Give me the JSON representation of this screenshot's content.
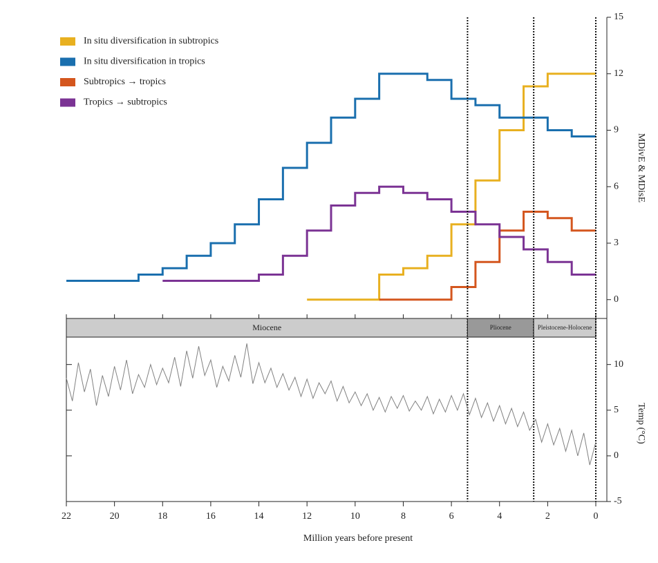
{
  "chart_data": [
    {
      "type": "step",
      "ylabel": "MDivE & MDisE",
      "legend": "upper left",
      "x": [
        22,
        21,
        20,
        19,
        18,
        17,
        16,
        15,
        14,
        13,
        12,
        11,
        10,
        9,
        8,
        7,
        6,
        5,
        4,
        3,
        2,
        1,
        0
      ],
      "xlim": [
        22,
        0
      ],
      "ylim": [
        -1,
        15
      ],
      "yticks": [
        0,
        3,
        6,
        9,
        12,
        15
      ],
      "series": [
        {
          "name": "In situ diversification in subtropics",
          "color": "#e8b020",
          "values": [
            null,
            null,
            null,
            null,
            null,
            null,
            null,
            null,
            null,
            null,
            0,
            0,
            0,
            1.33,
            1.67,
            2.33,
            4,
            6.33,
            9,
            11.33,
            12,
            12,
            12
          ]
        },
        {
          "name": "In situ diversification in tropics",
          "color": "#1a6fae",
          "values": [
            1,
            1,
            1,
            1.33,
            1.67,
            2.33,
            3,
            4,
            5.33,
            7,
            8.33,
            9.67,
            10.67,
            12,
            12,
            11.67,
            10.67,
            10.33,
            9.67,
            9.67,
            9,
            8.67,
            8.67
          ]
        },
        {
          "name": "Subtropics → tropics",
          "color": "#d4561e",
          "values": [
            null,
            null,
            null,
            null,
            null,
            null,
            null,
            null,
            null,
            null,
            null,
            null,
            null,
            0,
            0,
            0,
            0.67,
            2,
            3.67,
            4.67,
            4.33,
            3.67,
            3.67
          ]
        },
        {
          "name": "Tropics → subtropics",
          "color": "#7b3394",
          "values": [
            null,
            null,
            null,
            null,
            1,
            1,
            1,
            1,
            1.33,
            2.33,
            3.67,
            5,
            5.67,
            6,
            5.67,
            5.33,
            4.67,
            4,
            3.33,
            2.67,
            2,
            1.33,
            1.33
          ]
        }
      ]
    },
    {
      "type": "line",
      "xlabel": "Million years before present",
      "ylabel": "Temp (°C)",
      "epochs": [
        {
          "name": "Miocene",
          "from": 22,
          "to": 5.33,
          "color": "#cccccc"
        },
        {
          "name": "Pliocene",
          "from": 5.33,
          "to": 2.58,
          "color": "#999999"
        },
        {
          "name": "Pleistocene-Holocene",
          "from": 2.58,
          "to": 0,
          "color": "#cccccc"
        }
      ],
      "x": [
        22,
        21.75,
        21.5,
        21.25,
        21,
        20.75,
        20.5,
        20.25,
        20,
        19.75,
        19.5,
        19.25,
        19,
        18.75,
        18.5,
        18.25,
        18,
        17.75,
        17.5,
        17.25,
        17,
        16.75,
        16.5,
        16.25,
        16,
        15.75,
        15.5,
        15.25,
        15,
        14.75,
        14.5,
        14.25,
        14,
        13.75,
        13.5,
        13.25,
        13,
        12.75,
        12.5,
        12.25,
        12,
        11.75,
        11.5,
        11.25,
        11,
        10.75,
        10.5,
        10.25,
        10,
        9.75,
        9.5,
        9.25,
        9,
        8.75,
        8.5,
        8.25,
        8,
        7.75,
        7.5,
        7.25,
        7,
        6.75,
        6.5,
        6.25,
        6,
        5.75,
        5.5,
        5.25,
        5,
        4.75,
        4.5,
        4.25,
        4,
        3.75,
        3.5,
        3.25,
        3,
        2.75,
        2.5,
        2.25,
        2,
        1.75,
        1.5,
        1.25,
        1,
        0.75,
        0.5,
        0.25,
        0
      ],
      "series": [
        {
          "color": "#808080",
          "values": [
            8.5,
            6.0,
            10.2,
            7.0,
            9.5,
            5.5,
            8.8,
            6.5,
            9.8,
            7.2,
            10.5,
            6.8,
            8.9,
            7.5,
            10.0,
            7.8,
            9.6,
            8.0,
            10.8,
            7.6,
            11.5,
            8.5,
            12.0,
            8.8,
            10.5,
            7.5,
            9.8,
            8.2,
            11.0,
            8.6,
            12.3,
            7.9,
            10.2,
            8.0,
            9.6,
            7.5,
            9.0,
            7.2,
            8.6,
            6.5,
            8.4,
            6.3,
            8.0,
            6.8,
            8.2,
            6.0,
            7.6,
            5.8,
            7.0,
            5.5,
            6.8,
            5.0,
            6.4,
            4.8,
            6.5,
            5.2,
            6.6,
            4.9,
            6.0,
            5.0,
            6.5,
            4.6,
            6.2,
            4.8,
            6.6,
            5.0,
            6.8,
            4.5,
            6.3,
            4.2,
            5.8,
            3.8,
            5.5,
            3.5,
            5.2,
            3.2,
            4.8,
            2.8,
            4.0,
            1.5,
            3.5,
            1.2,
            3.0,
            0.5,
            2.8,
            0.0,
            2.5,
            -1.0,
            1.5
          ]
        }
      ],
      "xlim": [
        22,
        0
      ],
      "xticks": [
        22,
        20,
        18,
        16,
        14,
        12,
        10,
        8,
        6,
        4,
        2,
        0
      ],
      "ylim": [
        -5,
        13
      ],
      "yticks": [
        -5,
        0,
        5,
        10
      ]
    }
  ]
}
